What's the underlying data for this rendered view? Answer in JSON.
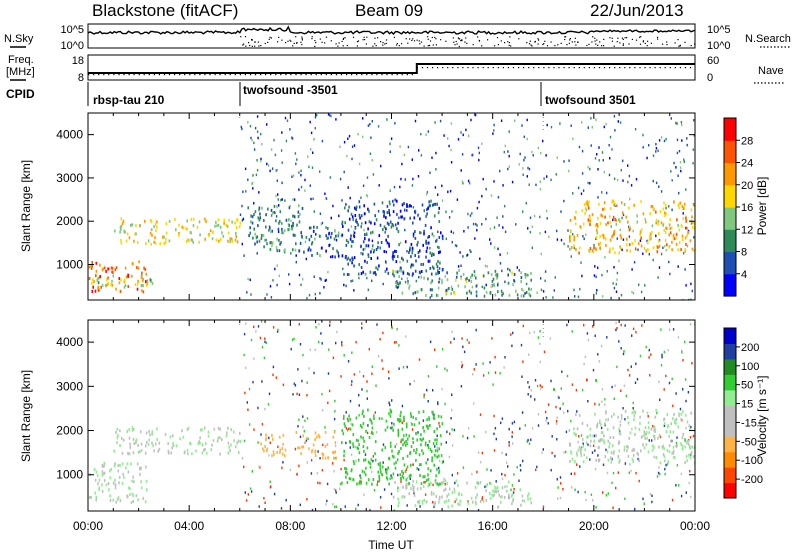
{
  "header": {
    "station": "Blackstone (fitACF)",
    "beam": "Beam 09",
    "date": "22/Jun/2013"
  },
  "side_labels": {
    "nsky": "N.Sky",
    "nsearch": "N.Search",
    "freq": "Freq.",
    "freq_unit": "[MHz]",
    "nave": "Nave",
    "cpid": "CPID"
  },
  "noise_panel": {
    "left_ticks": [
      "10^5",
      "10^0"
    ],
    "right_ticks": [
      "10^5",
      "10^0"
    ]
  },
  "freq_panel": {
    "left_ticks": [
      "18",
      "8"
    ],
    "right_ticks": [
      "60",
      "0"
    ]
  },
  "cpid_segments": [
    {
      "label": "rbsp-tau 210",
      "start_hour": 0
    },
    {
      "label": "twofsound -3501",
      "start_hour": 6
    },
    {
      "label": "twofsound 3501",
      "start_hour": 18
    }
  ],
  "colors": {
    "power_scale": [
      "#0000ff",
      "#1e4fb4",
      "#2e8b57",
      "#7fc97f",
      "#ffd700",
      "#ff9900",
      "#ff5500",
      "#ff0000"
    ],
    "velocity_scale": [
      "#ff0000",
      "#ff4500",
      "#ff8c00",
      "#ffb347",
      "#c0c0c0",
      "#c0c0c0",
      "#90ee90",
      "#32cd32",
      "#228b22",
      "#1e3fa0",
      "#0000cd"
    ]
  },
  "chart_data": [
    {
      "type": "heatmap",
      "panel": "power",
      "ylabel": "Slant Range [km]",
      "xlabel": "Time UT",
      "x_ticks": [
        "00:00",
        "04:00",
        "08:00",
        "12:00",
        "16:00",
        "20:00",
        "00:00"
      ],
      "x_range_hours": [
        0,
        24
      ],
      "y_ticks": [
        1000,
        2000,
        3000,
        4000
      ],
      "y_range": [
        180,
        4500
      ],
      "colorbar": {
        "label": "Power [dB]",
        "ticks": [
          "4",
          "8",
          "12",
          "16",
          "20",
          "24",
          "28"
        ],
        "range": [
          0,
          32
        ]
      },
      "echo_regions": [
        {
          "t": [
            0,
            2.3
          ],
          "r": [
            400,
            1100
          ],
          "level": 26
        },
        {
          "t": [
            0,
            2.6
          ],
          "r": [
            500,
            800
          ],
          "level": 16
        },
        {
          "t": [
            1.0,
            6.0
          ],
          "r": [
            1500,
            2100
          ],
          "level": 18
        },
        {
          "t": [
            6.3,
            8.5
          ],
          "r": [
            1300,
            2400
          ],
          "level": 10
        },
        {
          "t": [
            8.5,
            10.0
          ],
          "r": [
            1200,
            1900
          ],
          "level": 8
        },
        {
          "t": [
            10.0,
            14.0
          ],
          "r": [
            800,
            2500
          ],
          "level": 6
        },
        {
          "t": [
            12.0,
            17.5
          ],
          "r": [
            300,
            900
          ],
          "level": 12
        },
        {
          "t": [
            19.0,
            24.0
          ],
          "r": [
            1300,
            2500
          ],
          "level": 20
        }
      ]
    },
    {
      "type": "heatmap",
      "panel": "velocity",
      "ylabel": "Slant Range [km]",
      "xlabel": "Time UT",
      "x_ticks": [
        "00:00",
        "04:00",
        "08:00",
        "12:00",
        "16:00",
        "20:00",
        "00:00"
      ],
      "x_range_hours": [
        0,
        24
      ],
      "y_ticks": [
        1000,
        2000,
        3000,
        4000
      ],
      "y_range": [
        180,
        4500
      ],
      "colorbar": {
        "label": "Velocity [m s⁻¹]",
        "ticks": [
          "-200",
          "-100",
          "-50",
          "-15",
          "15",
          "50",
          "100",
          "200"
        ],
        "range": [
          -250,
          250
        ]
      },
      "echo_regions": [
        {
          "t": [
            0,
            2.3
          ],
          "r": [
            400,
            1300
          ],
          "level": 0
        },
        {
          "t": [
            1.0,
            6.0
          ],
          "r": [
            1500,
            2100
          ],
          "level": 0
        },
        {
          "t": [
            6.8,
            7.8
          ],
          "r": [
            1400,
            2000
          ],
          "level": -60
        },
        {
          "t": [
            8.2,
            9.8
          ],
          "r": [
            1400,
            2000
          ],
          "level": -60
        },
        {
          "t": [
            10.0,
            14.0
          ],
          "r": [
            800,
            2500
          ],
          "level": 20
        },
        {
          "t": [
            12.0,
            17.5
          ],
          "r": [
            300,
            900
          ],
          "level": 0
        },
        {
          "t": [
            19.0,
            24.0
          ],
          "r": [
            1300,
            2500
          ],
          "level": 0
        }
      ]
    }
  ]
}
